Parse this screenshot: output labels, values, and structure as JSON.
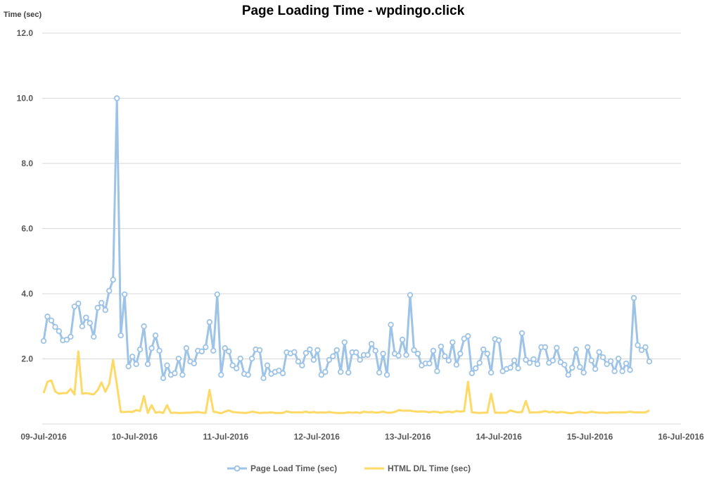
{
  "chart_data": {
    "type": "line",
    "title": "Page Loading Time - wpdingo.click",
    "ylabel": "Time (sec)",
    "xlabel": "",
    "ylim": [
      0,
      12
    ],
    "yticks": [
      "12.0",
      "10.0",
      "8.0",
      "6.0",
      "4.0",
      "2.0"
    ],
    "ytick_values": [
      12,
      10,
      8,
      6,
      4,
      2
    ],
    "xticks": [
      "09-Jul-2016",
      "10-Jul-2016",
      "11-Jul-2016",
      "12-Jul-2016",
      "13-Jul-2016",
      "14-Jul-2016",
      "15-Jul-2016",
      "16-Jul-2016"
    ],
    "x_unit": "hours since 09-Jul-2016 00:00 (approx. hourly samples)",
    "xlim": [
      0,
      168
    ],
    "grid": true,
    "legend_position": "bottom",
    "title_color": "#4472C4",
    "series": [
      {
        "name": "Page Load Time (sec)",
        "color": "#9DC3E6",
        "markers": true,
        "values": [
          2.55,
          3.3,
          3.18,
          2.98,
          2.85,
          2.57,
          2.59,
          2.68,
          3.61,
          3.7,
          3.0,
          3.27,
          3.1,
          2.68,
          3.57,
          3.72,
          3.5,
          4.09,
          4.43,
          10.0,
          2.72,
          3.98,
          1.77,
          2.07,
          1.84,
          2.29,
          3.0,
          1.84,
          2.33,
          2.72,
          2.25,
          1.41,
          1.8,
          1.51,
          1.56,
          2.01,
          1.51,
          2.33,
          1.92,
          1.86,
          2.25,
          2.23,
          2.36,
          3.13,
          2.25,
          3.98,
          1.51,
          2.33,
          2.23,
          1.8,
          1.71,
          2.01,
          1.54,
          1.51,
          2.01,
          2.29,
          2.27,
          1.41,
          1.8,
          1.54,
          1.6,
          1.64,
          1.56,
          2.2,
          2.17,
          2.21,
          1.92,
          1.8,
          2.18,
          2.29,
          1.97,
          2.27,
          1.51,
          1.6,
          1.97,
          2.08,
          2.27,
          1.6,
          2.51,
          1.58,
          2.2,
          2.2,
          1.97,
          2.12,
          2.12,
          2.46,
          2.25,
          1.58,
          2.16,
          1.51,
          3.05,
          2.16,
          2.1,
          2.59,
          2.12,
          3.96,
          2.27,
          2.16,
          1.8,
          1.86,
          1.86,
          2.25,
          1.62,
          2.38,
          2.08,
          1.95,
          2.51,
          1.82,
          2.16,
          2.62,
          2.7,
          1.56,
          1.71,
          1.88,
          2.29,
          2.16,
          1.58,
          2.61,
          2.57,
          1.62,
          1.69,
          1.73,
          1.95,
          1.71,
          2.79,
          1.97,
          1.88,
          1.99,
          1.84,
          2.36,
          2.36,
          1.88,
          1.95,
          2.34,
          1.9,
          1.82,
          1.51,
          1.73,
          2.29,
          1.75,
          1.58,
          2.36,
          1.95,
          1.69,
          2.21,
          2.05,
          1.84,
          1.93,
          1.62,
          2.01,
          1.62,
          1.86,
          1.66,
          3.87,
          2.42,
          2.27,
          2.36,
          1.92
        ]
      },
      {
        "name": "HTML D/L Time (sec)",
        "color": "#FFD966",
        "markers": false,
        "values": [
          0.95,
          1.3,
          1.34,
          1.0,
          0.93,
          0.95,
          0.95,
          1.08,
          0.91,
          2.23,
          0.93,
          0.95,
          0.93,
          0.91,
          1.04,
          1.28,
          0.99,
          1.23,
          1.97,
          1.2,
          0.37,
          0.37,
          0.38,
          0.37,
          0.43,
          0.4,
          0.86,
          0.34,
          0.58,
          0.35,
          0.37,
          0.34,
          0.58,
          0.34,
          0.35,
          0.34,
          0.34,
          0.35,
          0.35,
          0.36,
          0.37,
          0.35,
          0.34,
          1.05,
          0.38,
          0.36,
          0.33,
          0.38,
          0.42,
          0.37,
          0.36,
          0.35,
          0.34,
          0.35,
          0.38,
          0.36,
          0.34,
          0.35,
          0.35,
          0.36,
          0.34,
          0.34,
          0.34,
          0.39,
          0.36,
          0.36,
          0.36,
          0.36,
          0.38,
          0.35,
          0.37,
          0.35,
          0.36,
          0.35,
          0.37,
          0.35,
          0.34,
          0.34,
          0.34,
          0.36,
          0.35,
          0.36,
          0.34,
          0.38,
          0.36,
          0.37,
          0.35,
          0.36,
          0.38,
          0.35,
          0.35,
          0.37,
          0.43,
          0.41,
          0.41,
          0.41,
          0.39,
          0.38,
          0.39,
          0.38,
          0.36,
          0.38,
          0.37,
          0.35,
          0.37,
          0.38,
          0.36,
          0.4,
          0.38,
          0.4,
          1.3,
          0.36,
          0.35,
          0.34,
          0.35,
          0.35,
          0.93,
          0.35,
          0.35,
          0.35,
          0.35,
          0.42,
          0.38,
          0.36,
          0.37,
          0.71,
          0.35,
          0.36,
          0.36,
          0.37,
          0.4,
          0.36,
          0.38,
          0.35,
          0.37,
          0.36,
          0.34,
          0.33,
          0.36,
          0.37,
          0.35,
          0.35,
          0.38,
          0.36,
          0.35,
          0.35,
          0.34,
          0.36,
          0.36,
          0.36,
          0.36,
          0.36,
          0.38,
          0.36,
          0.36,
          0.36,
          0.36,
          0.42
        ]
      }
    ]
  }
}
